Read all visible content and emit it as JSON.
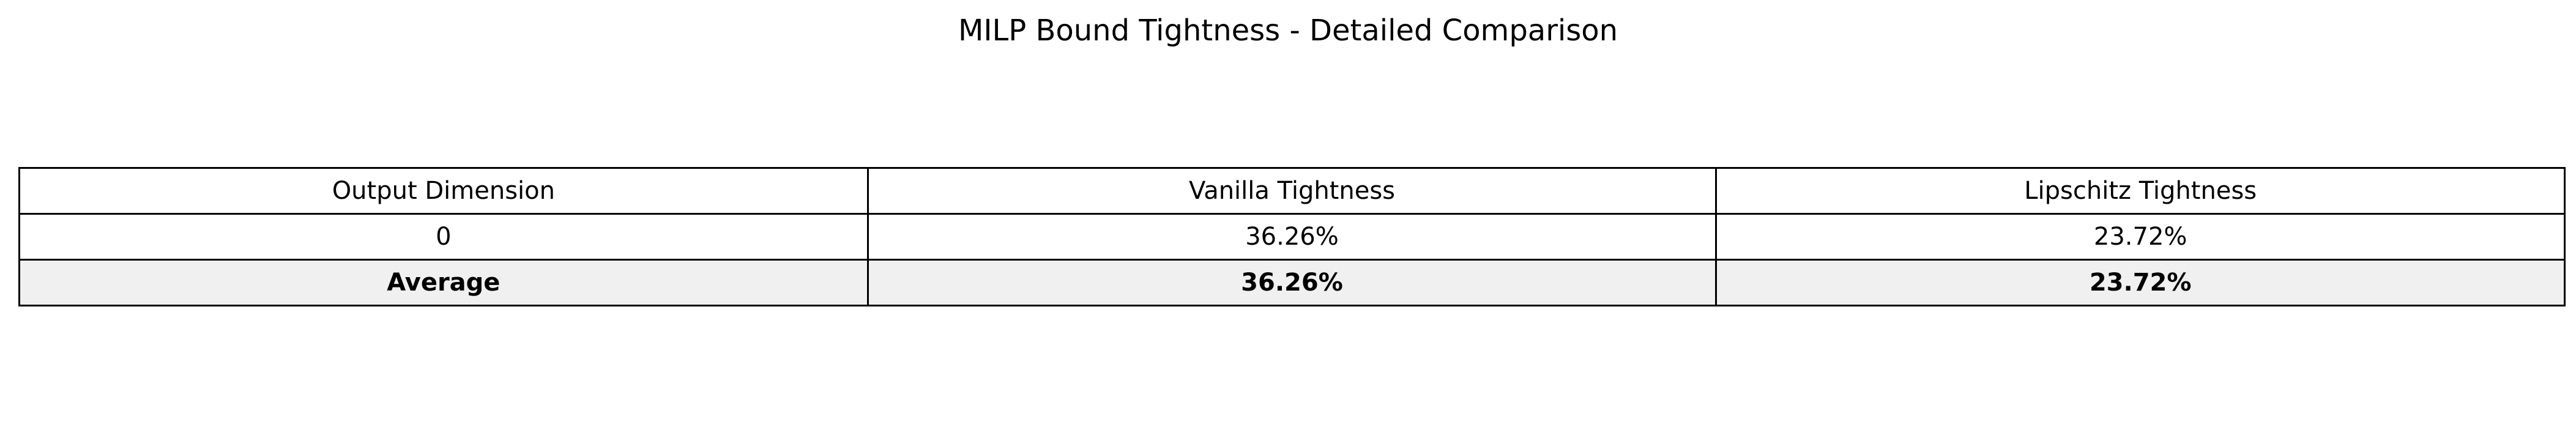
{
  "chart_data": {
    "type": "table",
    "title": "MILP Bound Tightness - Detailed Comparison",
    "columns": [
      "Output Dimension",
      "Vanilla Tightness",
      "Lipschitz Tightness"
    ],
    "rows": [
      [
        "0",
        "36.26%",
        "23.72%"
      ]
    ],
    "summary_row": [
      "Average",
      "36.26%",
      "23.72%"
    ],
    "colors": {
      "border": "#000000",
      "summary_background": "#f0f0f0",
      "background": "#ffffff"
    }
  }
}
